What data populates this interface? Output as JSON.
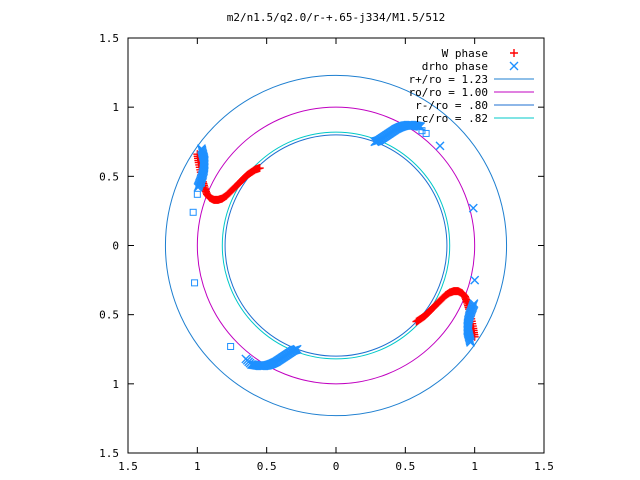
{
  "chart_data": {
    "type": "scatter",
    "title": "m2/n1.5/q2.0/r-+.65-j334/M1.5/512",
    "xlabel": "",
    "ylabel": "",
    "xlim": [
      -1.5,
      1.5
    ],
    "ylim": [
      -1.5,
      1.5
    ],
    "x_ticks": [
      {
        "v": -1.5,
        "label": "1.5"
      },
      {
        "v": -1.0,
        "label": "1"
      },
      {
        "v": -0.5,
        "label": "0.5"
      },
      {
        "v": 0,
        "label": "0"
      },
      {
        "v": 0.5,
        "label": "0.5"
      },
      {
        "v": 1.0,
        "label": "1"
      },
      {
        "v": 1.5,
        "label": "1.5"
      }
    ],
    "y_ticks": [
      {
        "v": 1.5,
        "label": "1.5"
      },
      {
        "v": 1.0,
        "label": "1"
      },
      {
        "v": 0.5,
        "label": "0.5"
      },
      {
        "v": 0,
        "label": "0"
      },
      {
        "v": -0.5,
        "label": "0.5"
      },
      {
        "v": -1.0,
        "label": "1"
      },
      {
        "v": -1.5,
        "label": "1.5"
      }
    ],
    "grid": false,
    "legend_position": "top-right",
    "series": [
      {
        "name": "W phase",
        "marker": "plus",
        "color": "#ff0000",
        "x": [
          -1.0,
          -0.99,
          -0.975,
          -0.96,
          -0.945,
          -0.93,
          -0.91,
          -0.88,
          -0.85,
          -0.82,
          -0.79,
          -0.76,
          -0.73,
          -0.7,
          -0.67,
          -0.64,
          -0.61,
          -0.58,
          -0.55,
          1.0,
          0.99,
          0.975,
          0.96,
          0.945,
          0.93,
          0.91,
          0.88,
          0.85,
          0.82,
          0.79,
          0.76,
          0.73,
          0.7,
          0.67,
          0.64,
          0.61,
          0.58
        ],
        "y": [
          0.66,
          0.6,
          0.53,
          0.46,
          0.41,
          0.37,
          0.345,
          0.33,
          0.33,
          0.34,
          0.36,
          0.39,
          0.42,
          0.45,
          0.48,
          0.51,
          0.53,
          0.55,
          0.56,
          -0.66,
          -0.6,
          -0.53,
          -0.46,
          -0.41,
          -0.37,
          -0.345,
          -0.33,
          -0.33,
          -0.34,
          -0.36,
          -0.39,
          -0.42,
          -0.45,
          -0.48,
          -0.51,
          -0.53,
          -0.55
        ]
      },
      {
        "name": "drho phase",
        "marker": "cross",
        "color": "#1e90ff",
        "x": [
          -0.97,
          -0.96,
          -0.95,
          -0.95,
          -0.955,
          -0.965,
          -0.98,
          -0.995,
          0.97,
          0.96,
          0.95,
          0.95,
          0.955,
          0.965,
          0.98,
          0.995,
          0.28,
          0.31,
          0.34,
          0.37,
          0.4,
          0.43,
          0.46,
          0.49,
          0.52,
          0.55,
          0.58,
          0.61,
          0.75,
          -0.28,
          -0.31,
          -0.34,
          -0.37,
          -0.4,
          -0.43,
          -0.46,
          -0.49,
          -0.52,
          -0.55,
          -0.58,
          -0.61,
          -0.65,
          0.99,
          1.0
        ],
        "y": [
          0.7,
          0.66,
          0.62,
          0.58,
          0.54,
          0.5,
          0.46,
          0.42,
          -0.7,
          -0.66,
          -0.62,
          -0.58,
          -0.54,
          -0.5,
          -0.46,
          -0.42,
          0.75,
          0.76,
          0.78,
          0.8,
          0.82,
          0.84,
          0.855,
          0.865,
          0.87,
          0.87,
          0.865,
          0.86,
          0.72,
          -0.75,
          -0.76,
          -0.78,
          -0.8,
          -0.82,
          -0.84,
          -0.855,
          -0.865,
          -0.87,
          -0.87,
          -0.865,
          -0.86,
          -0.82,
          0.27,
          -0.25
        ]
      },
      {
        "name": "",
        "marker": "square",
        "color": "#1e90ff",
        "x": [
          0.62,
          0.65,
          -1.03,
          -1.0,
          -0.97,
          -1.02,
          -0.76
        ],
        "y": [
          0.83,
          0.81,
          0.24,
          0.37,
          0.45,
          -0.27,
          -0.73
        ]
      }
    ],
    "circles": [
      {
        "name": "r+/ro = 1.23",
        "radius": 1.23,
        "color": "#1e7fd0"
      },
      {
        "name": "ro/ro = 1.00",
        "radius": 1.0,
        "color": "#c000c0"
      },
      {
        "name": "r-/ro = .80",
        "radius": 0.8,
        "color": "#1e6fd0"
      },
      {
        "name": "rc/ro = .82",
        "radius": 0.82,
        "color": "#00c8c8"
      }
    ]
  }
}
